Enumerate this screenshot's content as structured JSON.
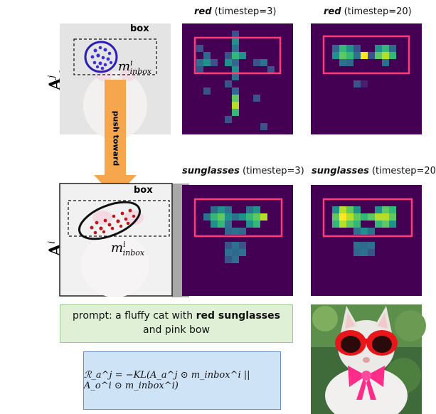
{
  "labels": {
    "a_label": "A",
    "a_sup": "j",
    "a_sub": "a",
    "o_label": "A",
    "o_sup": "i",
    "o_sub": "o",
    "box_top": "box",
    "box_bottom": "box",
    "m_inbox_top": "m",
    "m_inbox_top_sup": "i",
    "m_inbox_top_sub": "inbox",
    "m_inbox_bottom": "m",
    "m_inbox_bottom_sup": "i",
    "m_inbox_bottom_sub": "inbox",
    "push_toward": "push toward"
  },
  "captions": [
    {
      "word": "red",
      "rest": " (timestep=3)"
    },
    {
      "word": "red",
      "rest": " (timestep=20)"
    },
    {
      "word": "sunglasses",
      "rest": " (timestep=3)"
    },
    {
      "word": "sunglasses",
      "rest": " (timestep=20"
    }
  ],
  "prompt": {
    "prefix": "prompt: a fluffy cat with ",
    "bold": "red sunglasses",
    "suffix": "and pink bow"
  },
  "formula": "ℛ_a^j = −KL(A_a^j ⊙ m_inbox^i || A_o^i ⊙ m_inbox^i)",
  "colors": {
    "heat_bg": "#440154",
    "highlight_box": "#ff3b78",
    "arrow": "#f6a64c",
    "ellipse_top": "#2a1fb8",
    "ellipse_bottom": "#111111",
    "dots_top": "#3a2fd8",
    "dots_bottom": "#c0171b"
  }
}
